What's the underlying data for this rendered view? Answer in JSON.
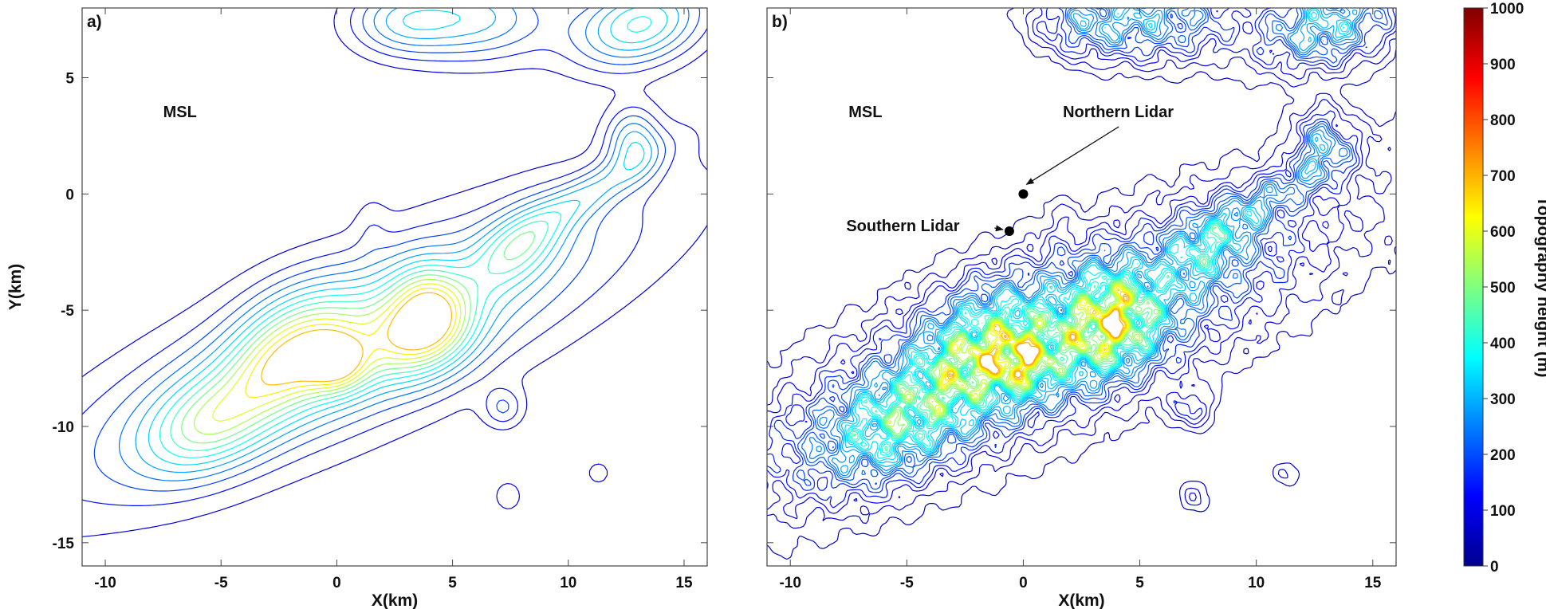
{
  "colorbar": {
    "label": "Topography height (m)",
    "min": 0,
    "max": 1000,
    "ticks": [
      0,
      100,
      200,
      300,
      400,
      500,
      600,
      700,
      800,
      900,
      1000
    ]
  },
  "chart_data": [
    {
      "type": "contour",
      "panel_label": "a)",
      "xlabel": "X(km)",
      "ylabel": "Y(km)",
      "xlim": [
        -11,
        16
      ],
      "ylim": [
        -16,
        8
      ],
      "xticks": [
        -10,
        -5,
        0,
        5,
        10,
        15
      ],
      "yticks": [
        -15,
        -10,
        -5,
        0,
        5
      ],
      "contour_interval_m": 50,
      "annotations": [
        {
          "text": "MSL",
          "x": -7.5,
          "y": 3.3
        }
      ],
      "points": []
    },
    {
      "type": "contour",
      "panel_label": "b)",
      "xlabel": "X(km)",
      "ylabel": "",
      "xlim": [
        -11,
        16
      ],
      "ylim": [
        -16,
        8
      ],
      "xticks": [
        -10,
        -5,
        0,
        5,
        10,
        15
      ],
      "yticks": [
        -15,
        -10,
        -5,
        0,
        5
      ],
      "contour_interval_m": 25,
      "annotations": [
        {
          "text": "MSL",
          "x": -7.5,
          "y": 3.3
        }
      ],
      "points": [
        {
          "name": "Northern Lidar",
          "x": 0.0,
          "y": 0.0,
          "label_x": 1.7,
          "label_y": 3.3
        },
        {
          "name": "Southern Lidar",
          "x": -0.6,
          "y": -1.6,
          "label_x": -7.6,
          "label_y": -1.6
        }
      ]
    }
  ]
}
